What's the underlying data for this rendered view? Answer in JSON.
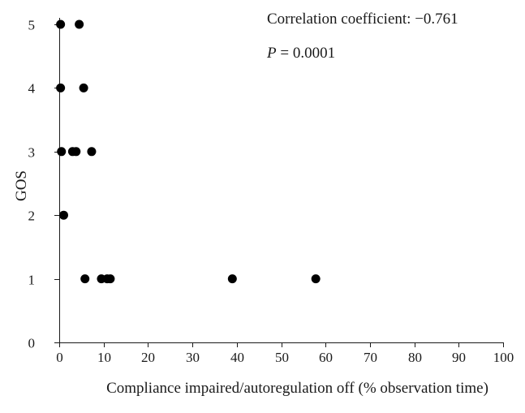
{
  "chart_data": {
    "type": "scatter",
    "xlabel": "Compliance impaired/autoregulation off (% observation time)",
    "ylabel": "GOS",
    "xlim": [
      0,
      100
    ],
    "ylim": [
      0,
      5
    ],
    "x_ticks": [
      0,
      10,
      20,
      30,
      40,
      50,
      60,
      70,
      80,
      90,
      100
    ],
    "y_ticks": [
      0,
      1,
      2,
      3,
      4,
      5
    ],
    "grid": false,
    "legend": "none",
    "series": [
      {
        "points": [
          {
            "x": 0.3,
            "y": 5
          },
          {
            "x": 4.5,
            "y": 5
          },
          {
            "x": 0.3,
            "y": 4
          },
          {
            "x": 5.5,
            "y": 4
          },
          {
            "x": 0.5,
            "y": 3
          },
          {
            "x": 3.0,
            "y": 3
          },
          {
            "x": 3.8,
            "y": 3
          },
          {
            "x": 7.3,
            "y": 3
          },
          {
            "x": 1.0,
            "y": 2
          },
          {
            "x": 5.8,
            "y": 1
          },
          {
            "x": 9.5,
            "y": 1
          },
          {
            "x": 10.8,
            "y": 1
          },
          {
            "x": 11.5,
            "y": 1
          },
          {
            "x": 39.0,
            "y": 1
          },
          {
            "x": 57.8,
            "y": 1
          }
        ]
      }
    ],
    "annotations": {
      "correlation": "Correlation coefficient: −0.761",
      "p_label": "P",
      "p_value": " = 0.0001"
    }
  }
}
